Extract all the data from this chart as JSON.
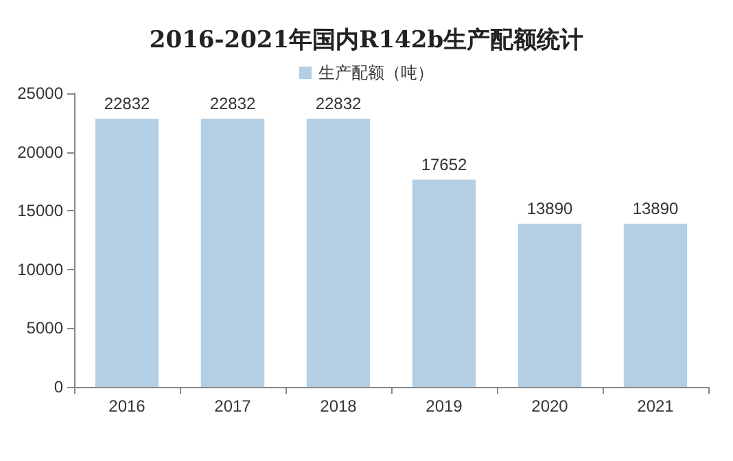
{
  "chart_data": {
    "type": "bar",
    "title": "2016-2021年国内R142b生产配额统计",
    "categories": [
      "2016",
      "2017",
      "2018",
      "2019",
      "2020",
      "2021"
    ],
    "series": [
      {
        "name": "生产配额（吨）",
        "color": "#b4cfe4",
        "values": [
          22832,
          22832,
          22832,
          17652,
          13890,
          13890
        ]
      }
    ],
    "ylim": [
      0,
      25000
    ],
    "yticks": [
      0,
      5000,
      10000,
      15000,
      20000,
      25000
    ],
    "grid": false,
    "legend": "top",
    "data_labels": true
  }
}
